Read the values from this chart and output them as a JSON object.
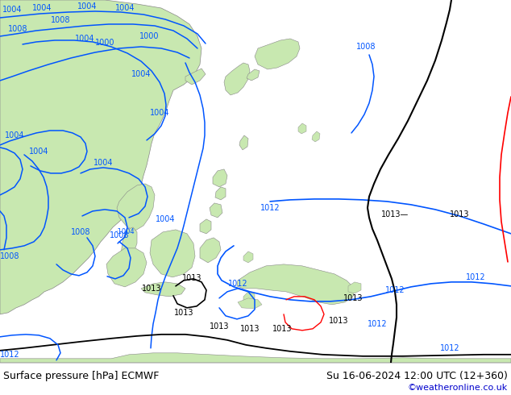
{
  "title_left": "Surface pressure [hPa] ECMWF",
  "title_right": "Su 16-06-2024 12:00 UTC (12+360)",
  "copyright": "©weatheronline.co.uk",
  "copyright_color": "#0000cc",
  "ocean_color": "#e8f4f8",
  "land_color": "#c8e8b0",
  "border_color": "#888888",
  "isobar_blue": "#0055ff",
  "isobar_black": "#000000",
  "isobar_red": "#ff0000",
  "label_fontsize": 7,
  "footer_color": "#000000",
  "figsize": [
    6.34,
    4.9
  ],
  "dpi": 100
}
